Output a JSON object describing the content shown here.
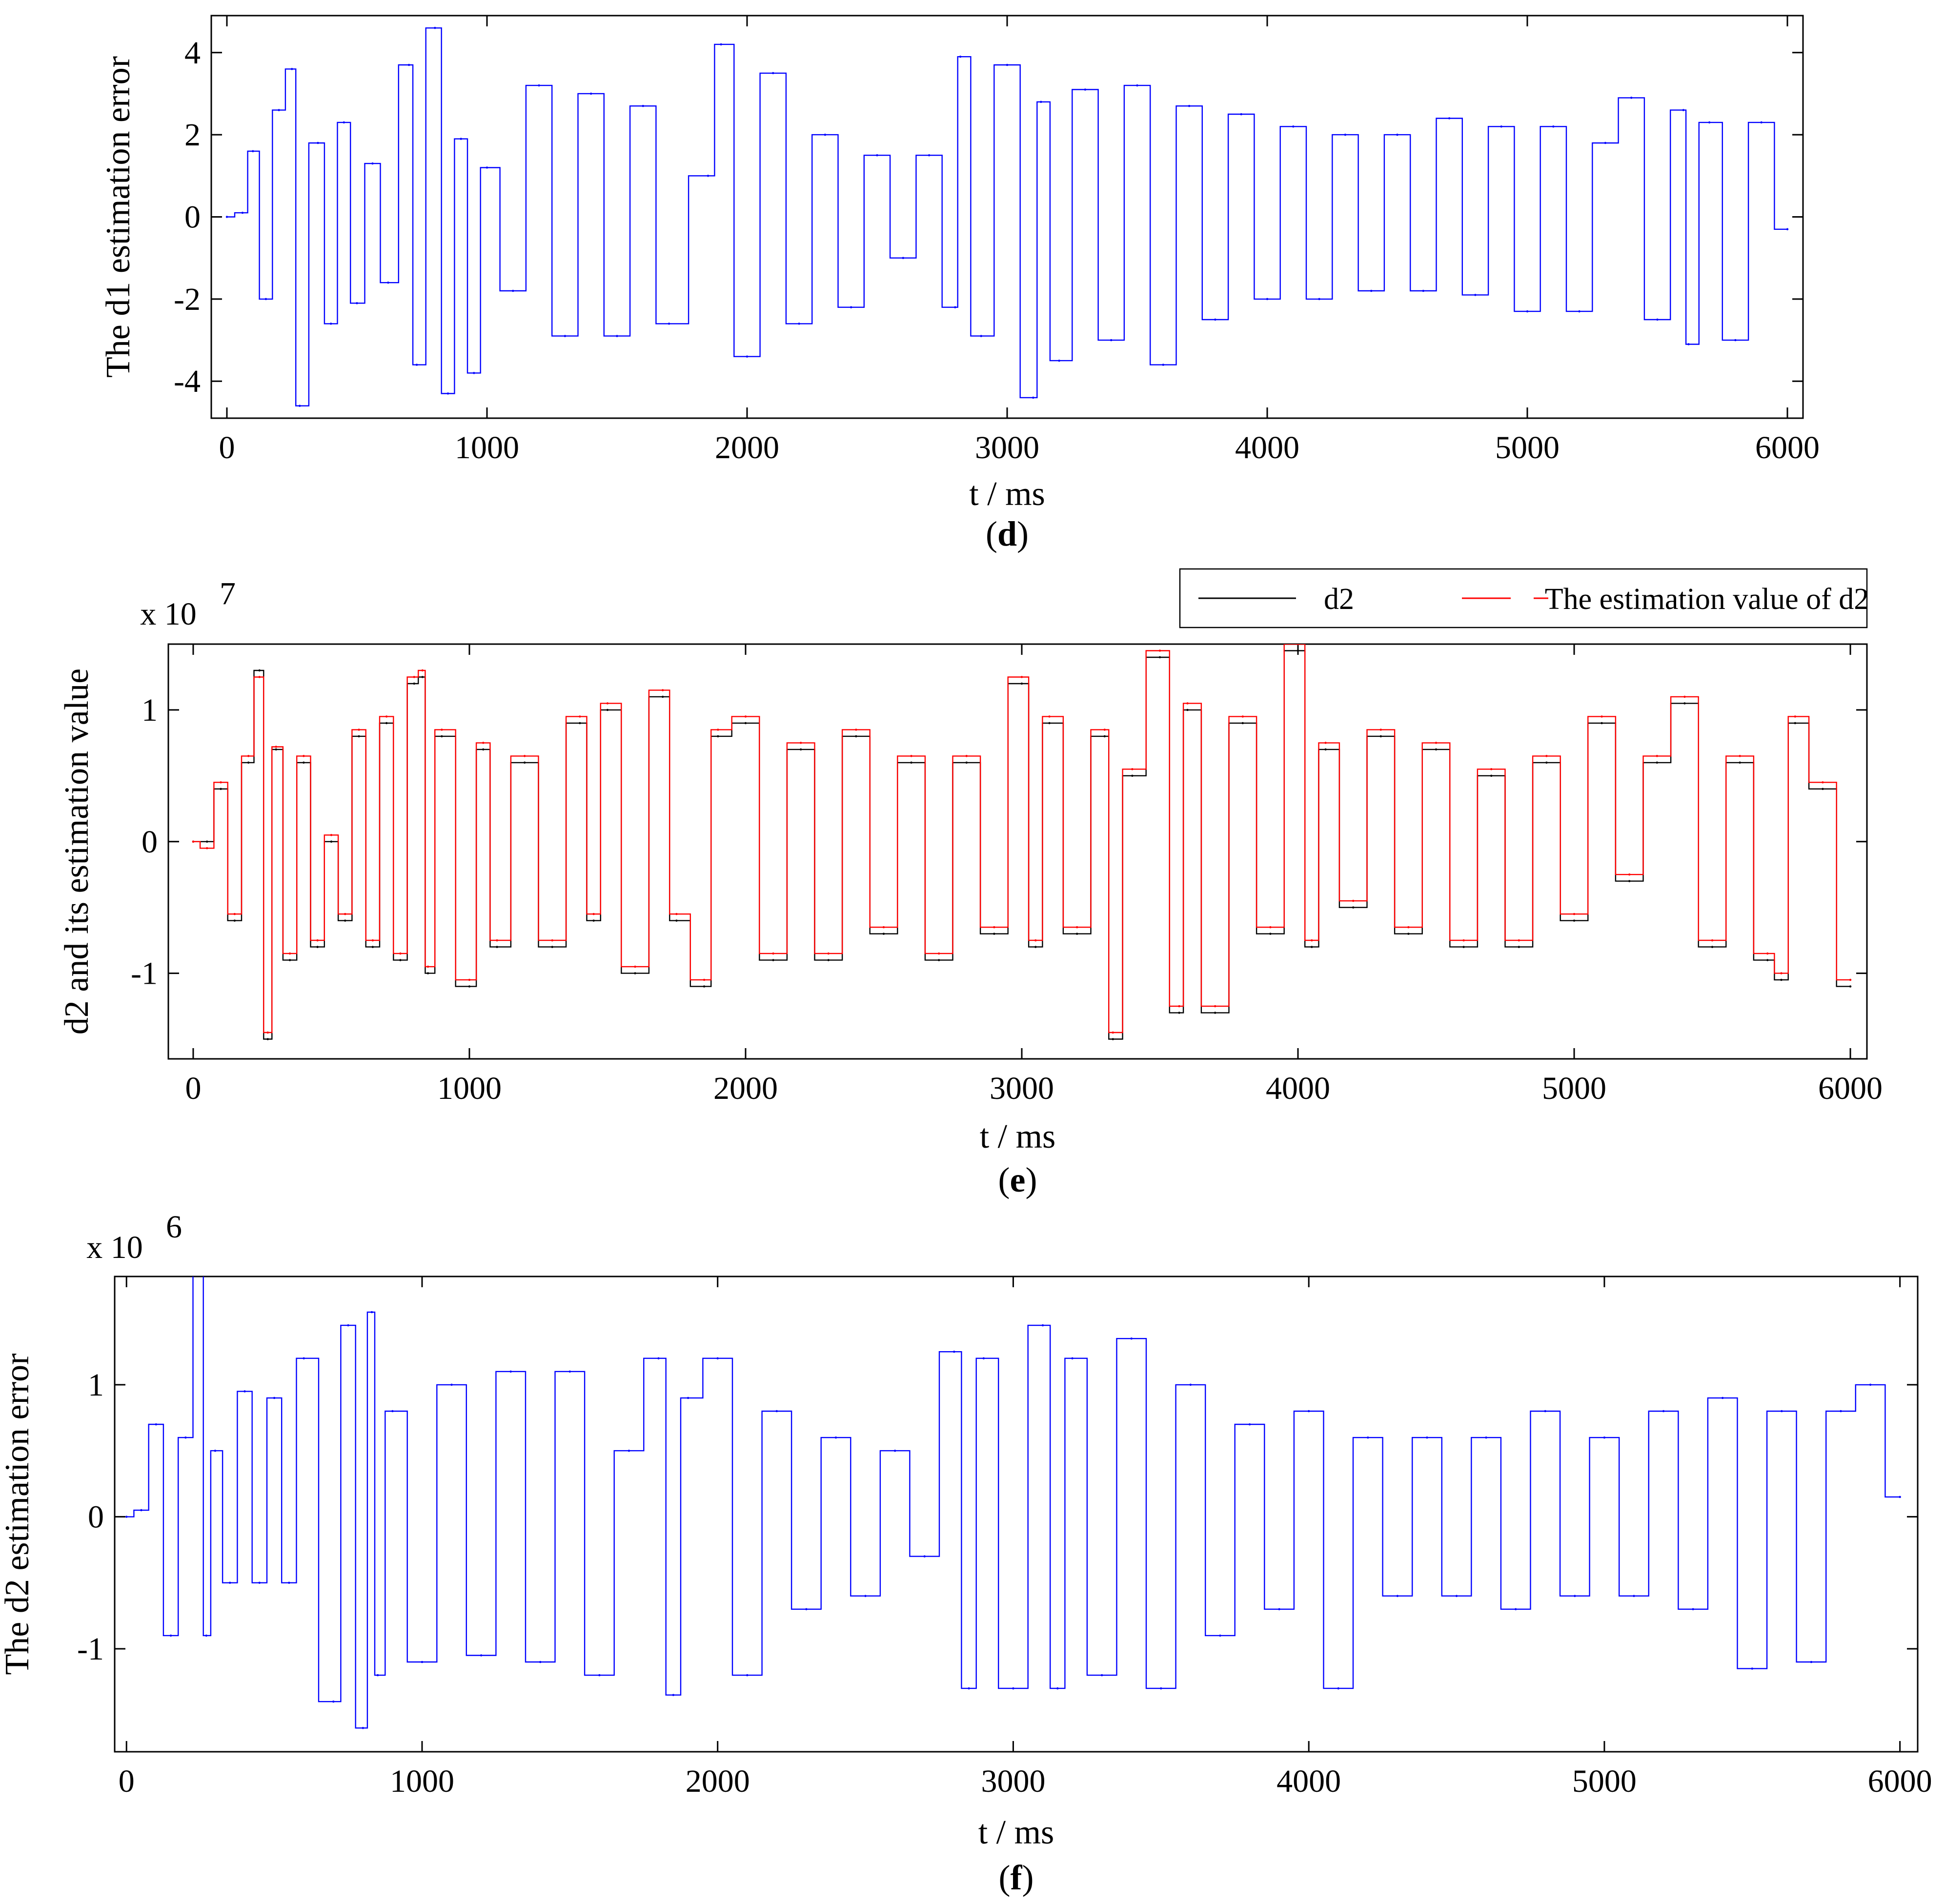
{
  "colors": {
    "blue": "#0000ff",
    "black": "#000000",
    "red": "#ff0000"
  },
  "chart_data": [
    {
      "id": "d",
      "type": "line",
      "panel_label": "d",
      "xlabel": "t / ms",
      "ylabel": "The d1 estimation error",
      "exponent_prefix": "",
      "exponent": "",
      "xlim": [
        -60,
        6060
      ],
      "ylim": [
        -4.9,
        4.9
      ],
      "xticks": [
        0,
        1000,
        2000,
        3000,
        4000,
        5000,
        6000
      ],
      "xtick_labels": [
        "0",
        "1000",
        "2000",
        "3000",
        "4000",
        "5000",
        "6000"
      ],
      "yticks": [
        -4,
        -2,
        0,
        2,
        4
      ],
      "ytick_labels": [
        "-4",
        "-2",
        "0",
        "2",
        "4"
      ],
      "series": [
        {
          "name": "d1 estimation error",
          "color": "#0000ff",
          "x": [
            0,
            60,
            100,
            150,
            200,
            250,
            280,
            350,
            400,
            450,
            500,
            560,
            620,
            700,
            730,
            800,
            850,
            900,
            950,
            1000,
            1100,
            1200,
            1300,
            1400,
            1500,
            1600,
            1700,
            1850,
            1900,
            2000,
            2100,
            2200,
            2300,
            2400,
            2500,
            2600,
            2700,
            2800,
            2820,
            2900,
            3000,
            3100,
            3130,
            3200,
            3300,
            3400,
            3500,
            3600,
            3700,
            3800,
            3900,
            4000,
            4100,
            4200,
            4300,
            4400,
            4500,
            4600,
            4700,
            4800,
            4900,
            5000,
            5100,
            5200,
            5300,
            5400,
            5500,
            5600,
            5620,
            5700,
            5800,
            5900,
            6000
          ],
          "y": [
            0,
            0.1,
            1.6,
            -2.0,
            2.6,
            3.6,
            -4.6,
            1.8,
            -2.6,
            2.3,
            -2.1,
            1.3,
            -1.6,
            3.7,
            -3.6,
            4.6,
            -4.3,
            1.9,
            -3.8,
            1.2,
            -1.8,
            3.2,
            -2.9,
            3.0,
            -2.9,
            2.7,
            -2.6,
            1.0,
            4.2,
            -3.4,
            3.5,
            -2.6,
            2.0,
            -2.2,
            1.5,
            -1.0,
            1.5,
            -2.2,
            3.9,
            -2.9,
            3.7,
            -4.4,
            2.8,
            -3.5,
            3.1,
            -3.0,
            3.2,
            -3.6,
            2.7,
            -2.5,
            2.5,
            -2.0,
            2.2,
            -2.0,
            2.0,
            -1.8,
            2.0,
            -1.8,
            2.4,
            -1.9,
            2.2,
            -2.3,
            2.2,
            -2.3,
            1.8,
            2.9,
            -2.5,
            2.6,
            -3.1,
            2.3,
            -3.0,
            2.3,
            -0.3
          ]
        }
      ]
    },
    {
      "id": "e",
      "type": "line",
      "panel_label": "e",
      "xlabel": "t / ms",
      "ylabel": "d2 and its estimation value",
      "exponent_prefix": "x 10",
      "exponent": "7",
      "xlim": [
        -90,
        6060
      ],
      "ylim": [
        -1.65,
        1.5
      ],
      "xticks": [
        0,
        1000,
        2000,
        3000,
        4000,
        5000,
        6000
      ],
      "xtick_labels": [
        "0",
        "1000",
        "2000",
        "3000",
        "4000",
        "5000",
        "6000"
      ],
      "yticks": [
        -1,
        0,
        1
      ],
      "ytick_labels": [
        "-1",
        "0",
        "1"
      ],
      "legend": {
        "position": "top-right",
        "entries": [
          {
            "label": "d2",
            "color": "#000000",
            "style": "solid"
          },
          {
            "label": "The estimation value of d2",
            "color": "#ff0000",
            "style": "dashed"
          }
        ]
      },
      "series": [
        {
          "name": "d2",
          "color": "#000000",
          "x": [
            0,
            50,
            100,
            150,
            200,
            240,
            270,
            300,
            350,
            400,
            450,
            500,
            550,
            600,
            650,
            700,
            750,
            800,
            830,
            850,
            900,
            1000,
            1050,
            1100,
            1200,
            1300,
            1400,
            1450,
            1500,
            1600,
            1700,
            1750,
            1850,
            1900,
            2000,
            2100,
            2200,
            2300,
            2400,
            2500,
            2600,
            2700,
            2800,
            2900,
            3000,
            3050,
            3100,
            3200,
            3300,
            3330,
            3400,
            3500,
            3570,
            3600,
            3700,
            3800,
            3900,
            4000,
            4050,
            4100,
            4200,
            4300,
            4400,
            4500,
            4600,
            4700,
            4800,
            4900,
            5000,
            5100,
            5200,
            5300,
            5400,
            5500,
            5600,
            5700,
            5750,
            5800,
            5900,
            6000
          ],
          "y": [
            0,
            0.0,
            0.4,
            -0.6,
            0.6,
            1.3,
            -1.5,
            0.7,
            -0.9,
            0.6,
            -0.8,
            0.0,
            -0.6,
            0.8,
            -0.8,
            0.9,
            -0.9,
            1.2,
            1.25,
            -1.0,
            0.8,
            -1.1,
            0.7,
            -0.8,
            0.6,
            -0.8,
            0.9,
            -0.6,
            1.0,
            -1.0,
            1.1,
            -0.6,
            -1.1,
            0.8,
            0.9,
            -0.9,
            0.7,
            -0.9,
            0.8,
            -0.7,
            0.6,
            -0.9,
            0.6,
            -0.7,
            1.2,
            -0.8,
            0.9,
            -0.7,
            0.8,
            -1.5,
            0.5,
            1.4,
            -1.3,
            1.0,
            -1.3,
            0.9,
            -0.7,
            1.45,
            -0.8,
            0.7,
            -0.5,
            0.8,
            -0.7,
            0.7,
            -0.8,
            0.5,
            -0.8,
            0.6,
            -0.6,
            0.9,
            -0.3,
            0.6,
            1.05,
            -0.8,
            0.6,
            -0.9,
            -1.05,
            0.9,
            0.4,
            -1.1
          ]
        },
        {
          "name": "The estimation value of d2",
          "color": "#ff0000",
          "x": [
            0,
            50,
            100,
            150,
            200,
            240,
            270,
            300,
            350,
            400,
            450,
            500,
            550,
            600,
            650,
            700,
            750,
            800,
            830,
            850,
            900,
            1000,
            1050,
            1100,
            1200,
            1300,
            1400,
            1450,
            1500,
            1600,
            1700,
            1750,
            1850,
            1900,
            2000,
            2100,
            2200,
            2300,
            2400,
            2500,
            2600,
            2700,
            2800,
            2900,
            3000,
            3050,
            3100,
            3200,
            3300,
            3330,
            3400,
            3500,
            3570,
            3600,
            3700,
            3800,
            3900,
            4000,
            4050,
            4100,
            4200,
            4300,
            4400,
            4500,
            4600,
            4700,
            4800,
            4900,
            5000,
            5100,
            5200,
            5300,
            5400,
            5500,
            5600,
            5700,
            5750,
            5800,
            5900,
            6000
          ],
          "y": [
            0,
            -0.05,
            0.45,
            -0.55,
            0.65,
            1.25,
            -1.45,
            0.72,
            -0.85,
            0.65,
            -0.75,
            0.05,
            -0.55,
            0.85,
            -0.75,
            0.95,
            -0.85,
            1.25,
            1.3,
            -0.95,
            0.85,
            -1.05,
            0.75,
            -0.75,
            0.65,
            -0.75,
            0.95,
            -0.55,
            1.05,
            -0.95,
            1.15,
            -0.55,
            -1.05,
            0.85,
            0.95,
            -0.85,
            0.75,
            -0.85,
            0.85,
            -0.65,
            0.65,
            -0.85,
            0.65,
            -0.65,
            1.25,
            -0.75,
            0.95,
            -0.65,
            0.85,
            -1.45,
            0.55,
            1.45,
            -1.25,
            1.05,
            -1.25,
            0.95,
            -0.65,
            1.5,
            -0.75,
            0.75,
            -0.45,
            0.85,
            -0.65,
            0.75,
            -0.75,
            0.55,
            -0.75,
            0.65,
            -0.55,
            0.95,
            -0.25,
            0.65,
            1.1,
            -0.75,
            0.65,
            -0.85,
            -1.0,
            0.95,
            0.45,
            -1.05
          ]
        }
      ]
    },
    {
      "id": "f",
      "type": "line",
      "panel_label": "f",
      "xlabel": "t / ms",
      "ylabel": "The d2 estimation error",
      "exponent_prefix": "x 10",
      "exponent": "6",
      "xlim": [
        -40,
        6060
      ],
      "ylim": [
        -1.78,
        1.82
      ],
      "xticks": [
        0,
        1000,
        2000,
        3000,
        4000,
        5000,
        6000
      ],
      "xtick_labels": [
        "0",
        "1000",
        "2000",
        "3000",
        "4000",
        "5000",
        "6000"
      ],
      "yticks": [
        -1,
        0,
        1
      ],
      "ytick_labels": [
        "-1",
        "0",
        "1"
      ],
      "series": [
        {
          "name": "d2 estimation error",
          "color": "#0000ff",
          "x": [
            0,
            50,
            100,
            150,
            200,
            250,
            270,
            300,
            350,
            400,
            450,
            500,
            550,
            600,
            700,
            750,
            800,
            830,
            850,
            900,
            1000,
            1100,
            1200,
            1300,
            1400,
            1500,
            1600,
            1700,
            1800,
            1850,
            1900,
            2000,
            2100,
            2200,
            2300,
            2400,
            2500,
            2600,
            2700,
            2800,
            2850,
            2900,
            3000,
            3100,
            3150,
            3200,
            3300,
            3400,
            3500,
            3600,
            3700,
            3800,
            3900,
            4000,
            4100,
            4200,
            4300,
            4400,
            4500,
            4600,
            4700,
            4800,
            4900,
            5000,
            5100,
            5200,
            5300,
            5400,
            5500,
            5600,
            5700,
            5800,
            5900,
            6000
          ],
          "y": [
            0,
            0.05,
            0.7,
            -0.9,
            0.6,
            1.85,
            -0.9,
            0.5,
            -0.5,
            0.95,
            -0.5,
            0.9,
            -0.5,
            1.2,
            -1.4,
            1.45,
            -1.6,
            1.55,
            -1.2,
            0.8,
            -1.1,
            1.0,
            -1.05,
            1.1,
            -1.1,
            1.1,
            -1.2,
            0.5,
            1.2,
            -1.35,
            0.9,
            1.2,
            -1.2,
            0.8,
            -0.7,
            0.6,
            -0.6,
            0.5,
            -0.3,
            1.25,
            -1.3,
            1.2,
            -1.3,
            1.45,
            -1.3,
            1.2,
            -1.2,
            1.35,
            -1.3,
            1.0,
            -0.9,
            0.7,
            -0.7,
            0.8,
            -1.3,
            0.6,
            -0.6,
            0.6,
            -0.6,
            0.6,
            -0.7,
            0.8,
            -0.6,
            0.6,
            -0.6,
            0.8,
            -0.7,
            0.9,
            -1.15,
            0.8,
            -1.1,
            0.8,
            1.0,
            0.15
          ]
        }
      ]
    }
  ]
}
